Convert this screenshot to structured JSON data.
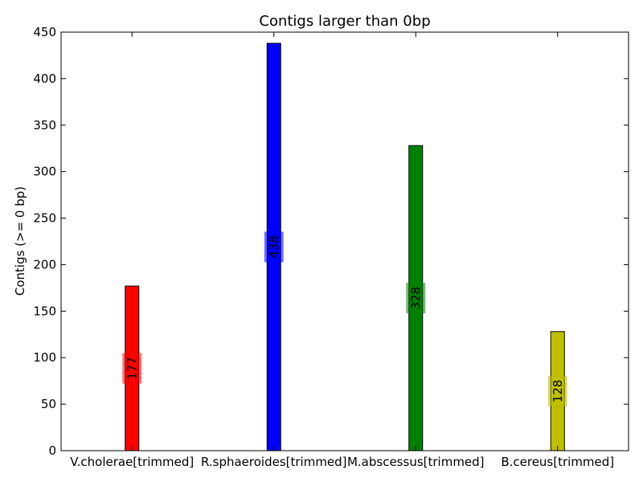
{
  "chart_data": {
    "type": "bar",
    "title": "Contigs larger than 0bp",
    "xlabel": "",
    "ylabel": "Contigs (>= 0 bp)",
    "ylim": [
      0,
      450
    ],
    "yticks": [
      "0",
      "50",
      "100",
      "150",
      "200",
      "250",
      "300",
      "350",
      "400",
      "450"
    ],
    "categories": [
      "V.cholerae[trimmed]",
      "R.sphaeroides[trimmed]",
      "M.abscessus[trimmed]",
      "B.cereus[trimmed]"
    ],
    "values": [
      177,
      438,
      328,
      128
    ],
    "value_labels": [
      "177",
      "438",
      "328",
      "128"
    ],
    "colors": [
      "#ff0000",
      "#0000ff",
      "#008000",
      "#bfbf00"
    ],
    "grid": false,
    "legend": "none"
  }
}
